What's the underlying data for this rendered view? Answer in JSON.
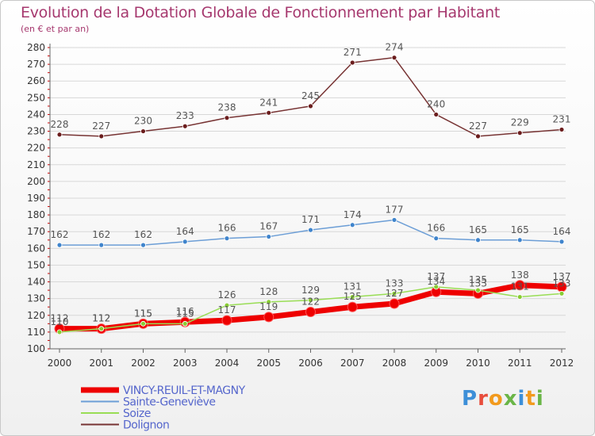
{
  "header": {
    "title": "Evolution de la Dotation Globale de Fonctionnement par Habitant",
    "subtitle": "(en € et par an)"
  },
  "logo": {
    "text": "Proxiti"
  },
  "colors": {
    "title": "#a6386e",
    "axis": "#666666",
    "grid": "#d8d8d8",
    "tick_red": "#cc0000",
    "label": "#555555",
    "legend_text": "#5566cc"
  },
  "chart_data": {
    "type": "line",
    "x": [
      "2000",
      "2001",
      "2002",
      "2003",
      "2004",
      "2005",
      "2006",
      "2007",
      "2008",
      "2009",
      "2010",
      "2011",
      "2012"
    ],
    "ylim": [
      100,
      280
    ],
    "y_ticks": [
      100,
      110,
      120,
      130,
      140,
      150,
      160,
      170,
      180,
      190,
      200,
      210,
      220,
      230,
      240,
      250,
      260,
      270,
      280
    ],
    "grid": true,
    "legend_position": "bottom-left",
    "series": [
      {
        "name": "VINCY-REUIL-ET-MAGNY",
        "color": "#ee0000",
        "marker": "#ee0000",
        "width": 7,
        "values": [
          112,
          112,
          115,
          116,
          117,
          119,
          122,
          125,
          127,
          134,
          133,
          138,
          137
        ]
      },
      {
        "name": "Sainte-Geneviève",
        "color": "#6c9ed6",
        "marker": "#3f84cc",
        "width": 1.5,
        "values": [
          162,
          162,
          162,
          164,
          166,
          167,
          171,
          174,
          177,
          166,
          165,
          165,
          164
        ]
      },
      {
        "name": "Soize",
        "color": "#99dd55",
        "marker": "#88cc33",
        "width": 1.5,
        "values": [
          110,
          112,
          115,
          115,
          126,
          128,
          129,
          131,
          133,
          137,
          135,
          131,
          133
        ]
      },
      {
        "name": "Dolignon",
        "color": "#773333",
        "marker": "#6b1d1d",
        "width": 1.5,
        "values": [
          228,
          227,
          230,
          233,
          238,
          241,
          245,
          271,
          274,
          240,
          227,
          229,
          231
        ]
      }
    ]
  }
}
